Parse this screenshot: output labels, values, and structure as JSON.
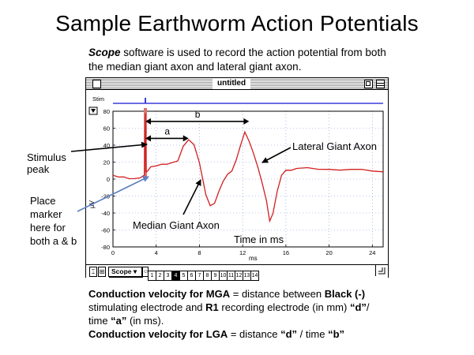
{
  "slide": {
    "title": "Sample Earthworm Action Potentials",
    "intro_bold": "Scope",
    "intro_line1_rest": " software is used to record the action potential from both",
    "intro_line2": "the median giant axon and lateral giant axon."
  },
  "window": {
    "title": "untitled",
    "stim_label": "Stim",
    "y_unit": "µV",
    "x_unit": "ms",
    "scope_label": "Scope",
    "tabs": [
      "1",
      "2",
      "3",
      "4",
      "5",
      "6",
      "7",
      "8",
      "9",
      "10",
      "11",
      "12",
      "13",
      "14"
    ],
    "active_tab": "4",
    "colors": {
      "trace": "#d21f1f",
      "stim": "#3b3bdf",
      "grid": "#7a8fd6",
      "marker_fill": "#e07070"
    }
  },
  "chart_data": {
    "type": "line",
    "title": "",
    "xlabel": "ms",
    "ylabel": "µV",
    "xlim": [
      0,
      25
    ],
    "ylim": [
      -80,
      80
    ],
    "x_ticks": [
      0,
      4,
      8,
      12,
      16,
      20,
      24
    ],
    "y_ticks": [
      80,
      60,
      40,
      20,
      0,
      -20,
      -40,
      -60,
      -80
    ],
    "grid": true,
    "series": [
      {
        "x": [
          0,
          0.5,
          1,
          1.5,
          2,
          2.5,
          2.9,
          3.0,
          3.05,
          3.2,
          3.5,
          4,
          4.5,
          5,
          5.5,
          6,
          6.5,
          7,
          7.5,
          8,
          8.3,
          8.6,
          9,
          9.4,
          9.8,
          10.2,
          10.6,
          11,
          11.4,
          11.8,
          12.2,
          12.6,
          13,
          13.4,
          13.8,
          14.2,
          14.5,
          14.8,
          15.2,
          15.6,
          16,
          16.5,
          17,
          18,
          19,
          20,
          21,
          22,
          23,
          24,
          25
        ],
        "y": [
          4,
          3,
          2,
          1,
          0,
          2,
          4,
          78,
          8,
          10,
          14,
          16,
          17,
          18,
          19,
          22,
          38,
          47,
          40,
          20,
          0,
          -18,
          -32,
          -28,
          -15,
          -2,
          5,
          10,
          22,
          40,
          55,
          45,
          30,
          15,
          -5,
          -25,
          -50,
          -40,
          -15,
          5,
          10,
          11,
          12,
          14,
          11,
          12,
          10,
          12,
          11,
          10,
          8
        ]
      }
    ],
    "stim_pulse_ms": 3.0,
    "marker_ms": 3.0,
    "annotations": {
      "a": {
        "label": "a",
        "from_ms": 3.0,
        "to_ms": 7.0,
        "y": 48
      },
      "b": {
        "label": "b",
        "from_ms": 3.0,
        "to_ms": 12.6,
        "y": 68
      }
    }
  },
  "annotations": {
    "stimulus_line1": "Stimulus",
    "stimulus_line2": "peak",
    "place_line1": "Place",
    "place_line2": "marker",
    "place_line3": "here for",
    "place_line4": "both a & b",
    "median": "Median Giant Axon",
    "lateral": "Lateral Giant Axon",
    "time": "Time in ms"
  },
  "bottom": {
    "mga_bold": "Conduction velocity for MGA",
    "mga_rest": " = distance between ",
    "black_bold": "Black (-)",
    "mga_line2_a": "stimulating electrode and ",
    "r1_bold": "R1",
    "mga_line2_b": " recording electrode (in mm) ",
    "d_bold": "“d”",
    "mga_line2_c": "/",
    "mga_line3_a": "time ",
    "a_bold": "“a”",
    "mga_line3_b": "  (in ms).",
    "lga_bold": "Conduction velocity for LGA",
    "lga_rest": " = distance ",
    "lga_d_bold": "“d”",
    "lga_mid": " / time ",
    "lga_b_bold": "“b”"
  }
}
